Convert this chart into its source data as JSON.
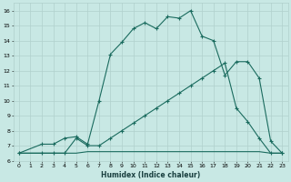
{
  "xlabel": "Humidex (Indice chaleur)",
  "background_color": "#c8e8e4",
  "grid_color": "#b0d0cc",
  "line_color": "#1a6b5e",
  "xlim": [
    -0.5,
    23.5
  ],
  "ylim": [
    6,
    16.5
  ],
  "yticks": [
    6,
    7,
    8,
    9,
    10,
    11,
    12,
    13,
    14,
    15,
    16
  ],
  "xticks": [
    0,
    1,
    2,
    3,
    4,
    5,
    6,
    7,
    8,
    9,
    10,
    11,
    12,
    13,
    14,
    15,
    16,
    17,
    18,
    19,
    20,
    21,
    22,
    23
  ],
  "line1_x": [
    0,
    2,
    3,
    4,
    5,
    6,
    7,
    8,
    9,
    10,
    11,
    12,
    13,
    14,
    15,
    16,
    17,
    18,
    19,
    20,
    21,
    22,
    23
  ],
  "line1_y": [
    6.5,
    7.1,
    7.1,
    7.5,
    7.6,
    7.1,
    10.0,
    13.1,
    13.9,
    14.8,
    15.2,
    14.8,
    15.6,
    15.5,
    16.0,
    14.3,
    14.0,
    11.7,
    12.6,
    12.6,
    11.5,
    7.3,
    6.5
  ],
  "line2_x": [
    0,
    2,
    3,
    4,
    5,
    6,
    7,
    8,
    9,
    10,
    11,
    12,
    13,
    14,
    15,
    16,
    17,
    18,
    19,
    20,
    21,
    22,
    23
  ],
  "line2_y": [
    6.5,
    6.5,
    6.5,
    6.5,
    7.5,
    7.0,
    7.0,
    7.5,
    8.0,
    8.5,
    9.0,
    9.5,
    10.0,
    10.5,
    11.0,
    11.5,
    12.0,
    12.5,
    9.5,
    8.6,
    7.5,
    6.5,
    6.5
  ],
  "line3_x": [
    0,
    2,
    3,
    4,
    5,
    6,
    7,
    8,
    9,
    10,
    11,
    12,
    13,
    14,
    15,
    16,
    17,
    18,
    19,
    20,
    21,
    22,
    23
  ],
  "line3_y": [
    6.5,
    6.5,
    6.5,
    6.5,
    6.5,
    6.6,
    6.6,
    6.6,
    6.6,
    6.6,
    6.6,
    6.6,
    6.6,
    6.6,
    6.6,
    6.6,
    6.6,
    6.6,
    6.6,
    6.6,
    6.6,
    6.5,
    6.5
  ],
  "marker_size": 3,
  "linewidth": 0.8,
  "tick_fontsize": 4.5,
  "xlabel_fontsize": 5.5
}
